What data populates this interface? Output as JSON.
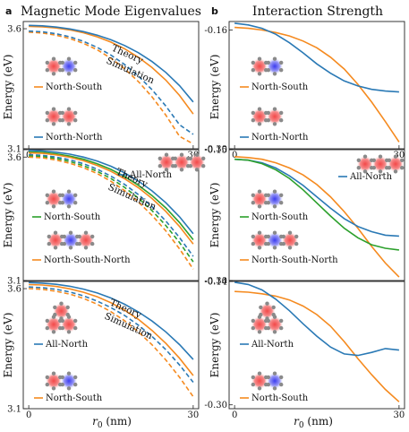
{
  "figure": {
    "panel_labels": [
      "a",
      "b"
    ],
    "column_titles": [
      "Magnetic Mode Eigenvalues",
      "Interaction Strength"
    ],
    "ylabel": "Energy (eV)",
    "xlabel_main": "r",
    "xlabel_sub": "0",
    "xlabel_unit": " (nm)",
    "annotations": {
      "theory": "Theory",
      "simulation": "Simulation"
    },
    "colors": {
      "north_south": "#f58a1f",
      "north_north": "#2a79b5",
      "green": "#2ca02c"
    }
  },
  "chart_data": [
    {
      "type": "line",
      "panel": "a-top",
      "x": [
        0,
        2.5,
        5,
        7.5,
        10,
        12.5,
        15,
        17.5,
        20,
        22.5,
        25,
        27.5,
        30
      ],
      "xlim": [
        -1,
        31
      ],
      "ylim": [
        3.1,
        3.63
      ],
      "xticks": [
        "0",
        "30"
      ],
      "yticks": [
        "3.1",
        "3.6"
      ],
      "series": [
        {
          "name": "North-South",
          "kind": "theory",
          "color": "north_south",
          "values": [
            3.61,
            3.608,
            3.603,
            3.595,
            3.583,
            3.566,
            3.544,
            3.516,
            3.481,
            3.438,
            3.386,
            3.322,
            3.245
          ]
        },
        {
          "name": "North-North",
          "kind": "theory",
          "color": "north_north",
          "values": [
            3.614,
            3.612,
            3.607,
            3.599,
            3.588,
            3.573,
            3.554,
            3.53,
            3.5,
            3.463,
            3.418,
            3.363,
            3.295
          ]
        },
        {
          "kind": "simulation",
          "color": "north_south",
          "values": [
            3.586,
            3.582,
            3.573,
            3.559,
            3.539,
            3.512,
            3.477,
            3.433,
            3.38,
            3.316,
            3.24,
            3.152,
            3.12
          ]
        },
        {
          "kind": "simulation",
          "color": "north_north",
          "values": [
            3.59,
            3.587,
            3.579,
            3.566,
            3.547,
            3.522,
            3.49,
            3.451,
            3.403,
            3.346,
            3.278,
            3.2,
            3.16
          ]
        }
      ],
      "legend": [
        "North-South",
        "North-North"
      ]
    },
    {
      "type": "line",
      "panel": "b-top",
      "x": [
        0,
        2.5,
        5,
        7.5,
        10,
        12.5,
        15,
        17.5,
        20,
        22.5,
        25,
        27.5,
        30
      ],
      "xlim": [
        -1,
        31
      ],
      "ylim": [
        -0.3,
        -0.15
      ],
      "xticks": [
        "0",
        "30"
      ],
      "yticks": [
        "-0.16",
        "-0.30"
      ],
      "series": [
        {
          "name": "North-South",
          "color": "north_south",
          "values": [
            -0.157,
            -0.158,
            -0.16,
            -0.163,
            -0.167,
            -0.173,
            -0.181,
            -0.192,
            -0.206,
            -0.224,
            -0.245,
            -0.268,
            -0.292
          ]
        },
        {
          "name": "North-North",
          "color": "north_north",
          "values": [
            -0.152,
            -0.154,
            -0.158,
            -0.165,
            -0.175,
            -0.187,
            -0.2,
            -0.211,
            -0.22,
            -0.226,
            -0.23,
            -0.232,
            -0.233
          ]
        }
      ],
      "legend": [
        "North-South",
        "North-North"
      ]
    },
    {
      "type": "line",
      "panel": "a-middle",
      "x": [
        0,
        2.5,
        5,
        7.5,
        10,
        12.5,
        15,
        17.5,
        20,
        22.5,
        25,
        27.5,
        30
      ],
      "xlim": [
        -1,
        31
      ],
      "ylim": [
        3.1,
        3.63
      ],
      "xticks": [],
      "yticks": [
        "3.1",
        "3.6"
      ],
      "series": [
        {
          "name": "All-North",
          "kind": "theory",
          "color": "north_north",
          "values": [
            3.627,
            3.625,
            3.62,
            3.612,
            3.6,
            3.584,
            3.563,
            3.536,
            3.503,
            3.463,
            3.415,
            3.358,
            3.29
          ]
        },
        {
          "name": "North-South",
          "kind": "theory",
          "color": "green",
          "values": [
            3.621,
            3.619,
            3.613,
            3.604,
            3.591,
            3.573,
            3.55,
            3.521,
            3.486,
            3.444,
            3.394,
            3.335,
            3.265
          ]
        },
        {
          "name": "North-South-North",
          "kind": "theory",
          "color": "north_south",
          "values": [
            3.617,
            3.615,
            3.609,
            3.599,
            3.585,
            3.566,
            3.542,
            3.512,
            3.476,
            3.432,
            3.38,
            3.319,
            3.248
          ]
        },
        {
          "kind": "simulation",
          "color": "north_north",
          "values": [
            3.61,
            3.607,
            3.6,
            3.589,
            3.573,
            3.551,
            3.523,
            3.489,
            3.448,
            3.399,
            3.341,
            3.274,
            3.198
          ]
        },
        {
          "kind": "simulation",
          "color": "green",
          "values": [
            3.605,
            3.602,
            3.594,
            3.582,
            3.565,
            3.542,
            3.513,
            3.477,
            3.434,
            3.383,
            3.323,
            3.254,
            3.176
          ]
        },
        {
          "kind": "simulation",
          "color": "north_south",
          "values": [
            3.6,
            3.597,
            3.588,
            3.575,
            3.557,
            3.533,
            3.502,
            3.464,
            3.418,
            3.364,
            3.301,
            3.228,
            3.146
          ]
        }
      ],
      "legend": [
        "All-North",
        "North-South",
        "North-South-North"
      ]
    },
    {
      "type": "line",
      "panel": "b-middle",
      "x": [
        0,
        2.5,
        5,
        7.5,
        10,
        12.5,
        15,
        17.5,
        20,
        22.5,
        25,
        27.5,
        30
      ],
      "xlim": [
        -1,
        31
      ],
      "ylim": [
        -0.3,
        -0.15
      ],
      "xticks": [],
      "yticks": [
        "-0.15",
        "-0.30"
      ],
      "series": [
        {
          "name": "North-South-North",
          "color": "north_south",
          "values": [
            -0.158,
            -0.159,
            -0.161,
            -0.165,
            -0.171,
            -0.179,
            -0.19,
            -0.204,
            -0.221,
            -0.24,
            -0.261,
            -0.28,
            -0.296
          ]
        },
        {
          "name": "All-North",
          "color": "north_north",
          "values": [
            -0.161,
            -0.162,
            -0.165,
            -0.171,
            -0.18,
            -0.191,
            -0.204,
            -0.217,
            -0.229,
            -0.238,
            -0.244,
            -0.248,
            -0.249
          ]
        },
        {
          "name": "North-South",
          "color": "green",
          "values": [
            -0.161,
            -0.162,
            -0.166,
            -0.173,
            -0.183,
            -0.196,
            -0.211,
            -0.226,
            -0.24,
            -0.251,
            -0.259,
            -0.263,
            -0.265
          ]
        }
      ],
      "legend": [
        "All-North",
        "North-South",
        "North-South-North"
      ]
    },
    {
      "type": "line",
      "panel": "a-bottom",
      "x": [
        0,
        2.5,
        5,
        7.5,
        10,
        12.5,
        15,
        17.5,
        20,
        22.5,
        25,
        27.5,
        30
      ],
      "xlim": [
        -1,
        31
      ],
      "ylim": [
        3.1,
        3.63
      ],
      "xticks": [
        "0",
        "30"
      ],
      "yticks": [
        "3.1",
        "3.6"
      ],
      "series": [
        {
          "name": "All-North",
          "kind": "theory",
          "color": "north_north",
          "values": [
            3.625,
            3.623,
            3.618,
            3.61,
            3.598,
            3.582,
            3.561,
            3.535,
            3.503,
            3.465,
            3.42,
            3.367,
            3.305
          ]
        },
        {
          "name": "North-South",
          "kind": "theory",
          "color": "north_south",
          "values": [
            3.617,
            3.615,
            3.609,
            3.599,
            3.585,
            3.566,
            3.541,
            3.51,
            3.472,
            3.426,
            3.372,
            3.31,
            3.238
          ]
        },
        {
          "kind": "simulation",
          "color": "north_north",
          "values": [
            3.607,
            3.604,
            3.597,
            3.586,
            3.57,
            3.548,
            3.521,
            3.488,
            3.448,
            3.401,
            3.346,
            3.282,
            3.21
          ]
        },
        {
          "kind": "simulation",
          "color": "north_south",
          "values": [
            3.6,
            3.597,
            3.589,
            3.577,
            3.559,
            3.535,
            3.504,
            3.466,
            3.42,
            3.366,
            3.303,
            3.231,
            3.15
          ]
        }
      ],
      "legend": [
        "All-North",
        "North-South"
      ]
    },
    {
      "type": "line",
      "panel": "b-bottom",
      "x": [
        0,
        2.5,
        5,
        7.5,
        10,
        12.5,
        15,
        17.5,
        20,
        22.5,
        25,
        27.5,
        30
      ],
      "xlim": [
        -1,
        31
      ],
      "ylim": [
        -0.305,
        -0.14
      ],
      "xticks": [
        "0",
        "30"
      ],
      "yticks": [
        "-0.14",
        "-0.30"
      ],
      "series": [
        {
          "name": "North-South",
          "color": "north_south",
          "values": [
            -0.153,
            -0.154,
            -0.156,
            -0.159,
            -0.164,
            -0.172,
            -0.183,
            -0.198,
            -0.218,
            -0.24,
            -0.261,
            -0.28,
            -0.296
          ]
        },
        {
          "name": "All-North",
          "color": "north_north",
          "values": [
            -0.141,
            -0.144,
            -0.151,
            -0.163,
            -0.178,
            -0.195,
            -0.211,
            -0.225,
            -0.234,
            -0.236,
            -0.232,
            -0.227,
            -0.229
          ]
        }
      ],
      "legend": [
        "All-North",
        "North-South"
      ]
    }
  ]
}
